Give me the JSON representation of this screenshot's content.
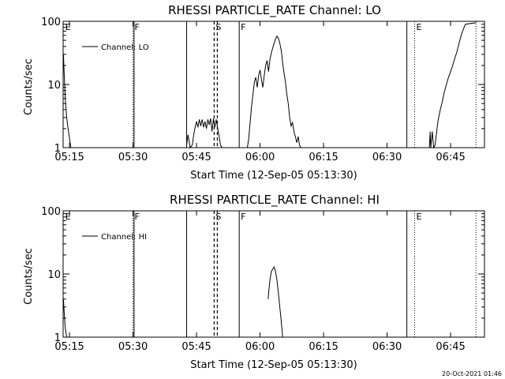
{
  "footer": {
    "timestamp": "20-Oct-2021 01:46"
  },
  "chart_data": [
    {
      "type": "line",
      "title": "RHESSI PARTICLE_RATE Channel: LO",
      "xlabel": "Start Time (12-Sep-05 05:13:30)",
      "ylabel": "Counts/sec",
      "y_scale": "log",
      "xlim": [
        "05:13:30",
        "06:53:00"
      ],
      "ylim": [
        1,
        100
      ],
      "x_ticks": [
        "05:15",
        "05:30",
        "05:45",
        "06:00",
        "06:15",
        "06:30",
        "06:45"
      ],
      "y_ticks": [
        "1",
        "10",
        "100"
      ],
      "legend": {
        "position": "top-left",
        "entries": [
          "Channel: LO"
        ]
      },
      "event_markers": [
        {
          "label": "E",
          "time": "05:13:40",
          "style": "none"
        },
        {
          "label": "F",
          "time": "05:30:00",
          "style": "dotted"
        },
        {
          "label": "",
          "time": "05:30:15",
          "style": "solid"
        },
        {
          "label": "",
          "time": "05:42:40",
          "style": "solid"
        },
        {
          "label": "S",
          "time": "05:49:10",
          "style": "dashed"
        },
        {
          "label": "F",
          "time": "05:55:05",
          "style": "solid"
        },
        {
          "label": "",
          "time": "06:34:40",
          "style": "solid"
        },
        {
          "label": "E",
          "time": "06:36:30",
          "style": "dotted"
        },
        {
          "label": "",
          "time": "06:51:00",
          "style": "dotted"
        }
      ],
      "series": [
        {
          "segments": [
            [
              [
                "05:13:35",
                30
              ],
              [
                "05:13:45",
                15
              ],
              [
                "05:14:00",
                6
              ],
              [
                "05:14:20",
                3
              ],
              [
                "05:14:40",
                2
              ],
              [
                "05:15:00",
                1.4
              ],
              [
                "05:15:20",
                1
              ]
            ],
            [
              [
                "05:42:40",
                1.1
              ],
              [
                "05:43:00",
                1.6
              ],
              [
                "05:43:30",
                1
              ],
              [
                "05:44:00",
                1.1
              ],
              [
                "05:44:20",
                1.6
              ],
              [
                "05:44:40",
                2.1
              ],
              [
                "05:45:00",
                2.6
              ],
              [
                "05:45:20",
                2.1
              ],
              [
                "05:45:40",
                2.8
              ],
              [
                "05:46:00",
                2.2
              ],
              [
                "05:46:20",
                2.8
              ],
              [
                "05:46:40",
                2.1
              ],
              [
                "05:47:00",
                2.6
              ],
              [
                "05:47:20",
                2.0
              ],
              [
                "05:47:40",
                2.8
              ],
              [
                "05:48:00",
                2.3
              ],
              [
                "05:48:20",
                2.9
              ],
              [
                "05:48:40",
                1.8
              ],
              [
                "05:49:00",
                2.9
              ],
              [
                "05:49:20",
                2.1
              ],
              [
                "05:49:40",
                2.8
              ],
              [
                "05:50:00",
                2.0
              ],
              [
                "05:50:20",
                1.5
              ],
              [
                "05:50:40",
                1.1
              ],
              [
                "05:51:00",
                1
              ]
            ],
            [
              [
                "05:57:00",
                1
              ],
              [
                "05:57:20",
                1.4
              ],
              [
                "05:57:40",
                2.5
              ],
              [
                "05:58:00",
                4.5
              ],
              [
                "05:58:20",
                7
              ],
              [
                "05:58:40",
                11
              ],
              [
                "05:59:00",
                13
              ],
              [
                "05:59:20",
                9
              ],
              [
                "05:59:40",
                14
              ],
              [
                "06:00:00",
                17
              ],
              [
                "06:00:20",
                12
              ],
              [
                "06:00:40",
                9
              ],
              [
                "06:01:00",
                14
              ],
              [
                "06:01:20",
                20
              ],
              [
                "06:01:40",
                24
              ],
              [
                "06:02:00",
                16
              ],
              [
                "06:02:20",
                25
              ],
              [
                "06:02:40",
                32
              ],
              [
                "06:03:00",
                38
              ],
              [
                "06:03:20",
                45
              ],
              [
                "06:03:40",
                52
              ],
              [
                "06:04:00",
                58
              ],
              [
                "06:04:20",
                54
              ],
              [
                "06:04:40",
                45
              ],
              [
                "06:05:00",
                35
              ],
              [
                "06:05:20",
                22
              ],
              [
                "06:05:40",
                15
              ],
              [
                "06:06:00",
                11
              ],
              [
                "06:06:20",
                7
              ],
              [
                "06:06:40",
                5
              ],
              [
                "06:07:00",
                3
              ],
              [
                "06:07:20",
                2.2
              ],
              [
                "06:07:40",
                2.5
              ],
              [
                "06:08:00",
                1.8
              ],
              [
                "06:08:20",
                1.5
              ],
              [
                "06:08:40",
                1.2
              ],
              [
                "06:09:00",
                1.5
              ],
              [
                "06:09:20",
                1.1
              ],
              [
                "06:09:40",
                1
              ]
            ],
            [
              [
                "06:40:00",
                1
              ],
              [
                "06:40:10",
                1.8
              ],
              [
                "06:40:20",
                1
              ],
              [
                "06:40:40",
                1.8
              ],
              [
                "06:41:00",
                1
              ],
              [
                "06:41:20",
                1.1
              ],
              [
                "06:41:40",
                1.7
              ],
              [
                "06:42:00",
                2.6
              ],
              [
                "06:42:30",
                3.8
              ],
              [
                "06:43:00",
                5.2
              ],
              [
                "06:43:30",
                7.5
              ],
              [
                "06:44:00",
                10
              ],
              [
                "06:44:30",
                13
              ],
              [
                "06:45:00",
                16
              ],
              [
                "06:45:30",
                20
              ],
              [
                "06:46:00",
                26
              ],
              [
                "06:46:30",
                33
              ],
              [
                "06:47:00",
                45
              ],
              [
                "06:47:30",
                60
              ],
              [
                "06:48:00",
                75
              ],
              [
                "06:48:30",
                90
              ],
              [
                "06:51:00",
                95
              ]
            ]
          ]
        }
      ]
    },
    {
      "type": "line",
      "title": "RHESSI PARTICLE_RATE Channel: HI",
      "xlabel": "Start Time (12-Sep-05 05:13:30)",
      "ylabel": "Counts/sec",
      "y_scale": "log",
      "xlim": [
        "05:13:30",
        "06:53:00"
      ],
      "ylim": [
        1,
        100
      ],
      "x_ticks": [
        "05:15",
        "05:30",
        "05:45",
        "06:00",
        "06:15",
        "06:30",
        "06:45"
      ],
      "y_ticks": [
        "1",
        "10",
        "100"
      ],
      "legend": {
        "position": "top-left",
        "entries": [
          "Channel: HI"
        ]
      },
      "event_markers": [
        {
          "label": "E",
          "time": "05:13:40",
          "style": "none"
        },
        {
          "label": "F",
          "time": "05:30:00",
          "style": "dotted"
        },
        {
          "label": "",
          "time": "05:30:15",
          "style": "solid"
        },
        {
          "label": "",
          "time": "05:42:40",
          "style": "solid"
        },
        {
          "label": "S",
          "time": "05:49:10",
          "style": "dashed"
        },
        {
          "label": "F",
          "time": "05:55:05",
          "style": "solid"
        },
        {
          "label": "",
          "time": "06:34:40",
          "style": "solid"
        },
        {
          "label": "E",
          "time": "06:36:30",
          "style": "dotted"
        },
        {
          "label": "",
          "time": "06:51:00",
          "style": "dotted"
        }
      ],
      "series": [
        {
          "segments": [
            [
              [
                "05:13:35",
                4
              ],
              [
                "05:13:45",
                2.5
              ],
              [
                "05:14:00",
                1.4
              ],
              [
                "05:14:20",
                1
              ]
            ],
            [
              [
                "06:01:55",
                4
              ],
              [
                "06:02:05",
                5.5
              ],
              [
                "06:02:20",
                8
              ],
              [
                "06:02:40",
                11
              ],
              [
                "06:03:00",
                12
              ],
              [
                "06:03:20",
                13
              ],
              [
                "06:03:40",
                11
              ],
              [
                "06:04:00",
                8
              ],
              [
                "06:04:20",
                5
              ],
              [
                "06:04:40",
                3
              ],
              [
                "06:05:00",
                1.8
              ],
              [
                "06:05:20",
                1
              ]
            ]
          ]
        }
      ]
    }
  ]
}
